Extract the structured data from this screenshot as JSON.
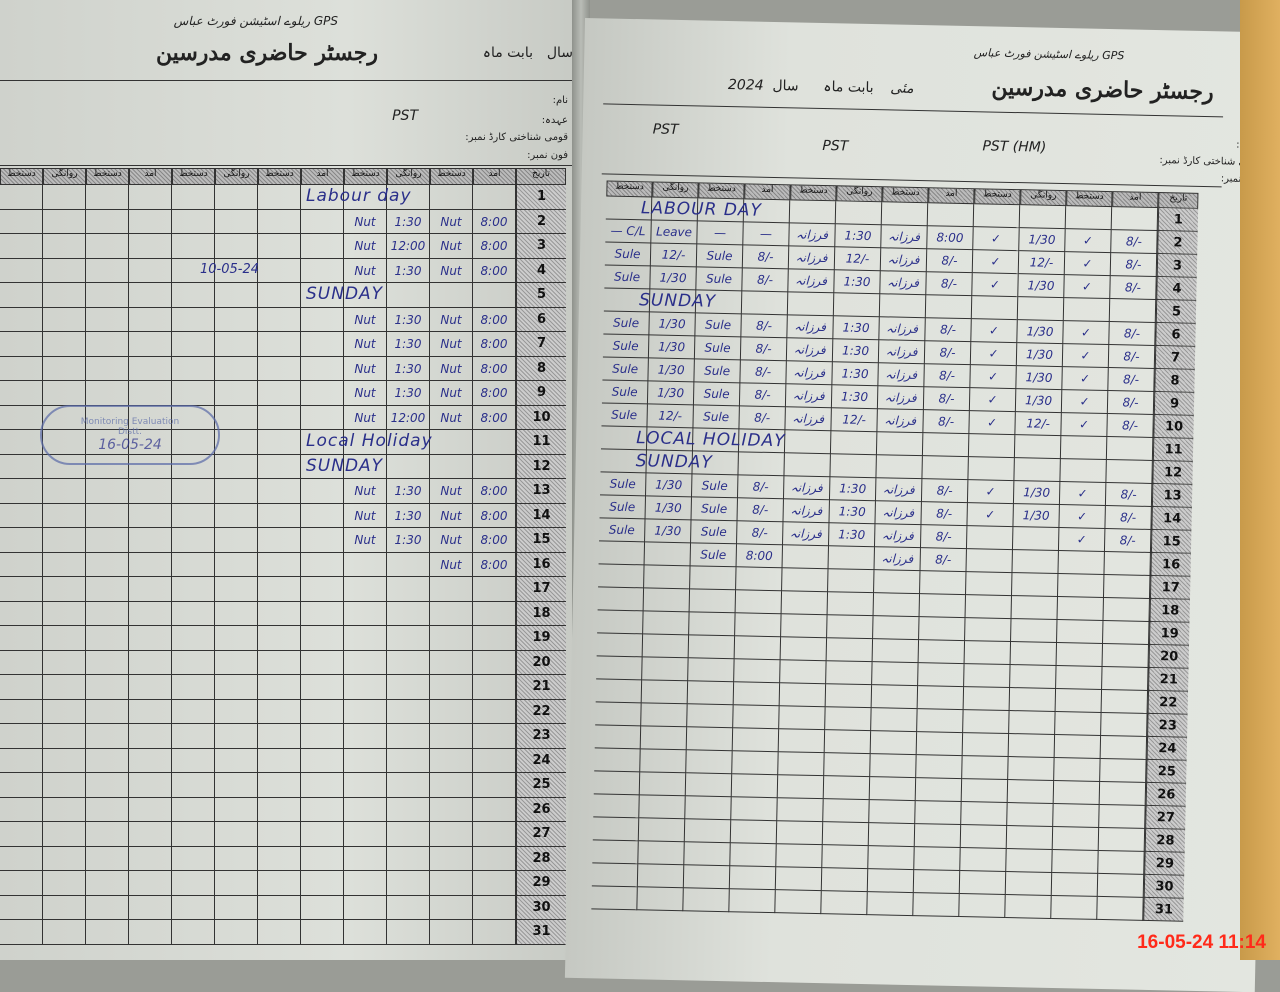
{
  "header": {
    "title": "رجسٹر حاضری مدرسین",
    "month_label": "بابت ماہ",
    "year_label": "سال",
    "school": "GPS ریلوے اسٹیشن فورٹ عباس",
    "month": "مئی",
    "year": "2024"
  },
  "fields": {
    "name": "نام:",
    "designation": "عہدہ:",
    "cnic": "قومی شناختی کارڈ نمبر:",
    "phone": "فون نمبر:"
  },
  "column_headers": [
    "دستخط",
    "روانگی",
    "دستخط",
    "آمد"
  ],
  "date_header": "تاریخ",
  "dates": [
    "1",
    "2",
    "3",
    "4",
    "5",
    "6",
    "7",
    "8",
    "9",
    "10",
    "11",
    "12",
    "13",
    "14",
    "15",
    "16",
    "17",
    "18",
    "19",
    "20",
    "21",
    "22",
    "23",
    "24",
    "25",
    "26",
    "27",
    "28",
    "29",
    "30",
    "31"
  ],
  "left_page": {
    "teacher": {
      "designation": "PST"
    },
    "rows": [
      {
        "note": "Labour day"
      },
      {
        "cells": [
          "Nut",
          "1:30",
          "Nut",
          "8:00"
        ]
      },
      {
        "cells": [
          "Nut",
          "12:00",
          "Nut",
          "8:00"
        ]
      },
      {
        "cells": [
          "Nut",
          "1:30",
          "Nut",
          "8:00"
        ]
      },
      {
        "note": "SUNDAY"
      },
      {
        "cells": [
          "Nut",
          "1:30",
          "Nut",
          "8:00"
        ]
      },
      {
        "cells": [
          "Nut",
          "1:30",
          "Nut",
          "8:00"
        ]
      },
      {
        "cells": [
          "Nut",
          "1:30",
          "Nut",
          "8:00"
        ]
      },
      {
        "cells": [
          "Nut",
          "1:30",
          "Nut",
          "8:00"
        ]
      },
      {
        "cells": [
          "Nut",
          "12:00",
          "Nut",
          "8:00"
        ]
      },
      {
        "note": "Local Holiday"
      },
      {
        "note": "SUNDAY"
      },
      {
        "cells": [
          "Nut",
          "1:30",
          "Nut",
          "8:00"
        ]
      },
      {
        "cells": [
          "Nut",
          "1:30",
          "Nut",
          "8:00"
        ]
      },
      {
        "cells": [
          "Nut",
          "1:30",
          "Nut",
          "8:00"
        ]
      },
      {
        "cells": [
          "",
          "",
          "Nut",
          "8:00"
        ]
      }
    ],
    "stamp_date": "16-05-24",
    "visit_note": "10-05-24"
  },
  "right_page": {
    "teachers": [
      {
        "designation": "PST"
      },
      {
        "designation": "PST"
      },
      {
        "designation": "PST (HM)"
      }
    ],
    "rows": [
      {
        "note": "LABOUR DAY"
      },
      {
        "cells": [
          "— C/L",
          "Leave",
          "—",
          "—",
          "فرزانہ",
          "1:30",
          "فرزانہ",
          "8:00",
          "✓",
          "1/30",
          "✓",
          "8/-"
        ]
      },
      {
        "cells": [
          "Sule",
          "12/-",
          "Sule",
          "8/-",
          "فرزانہ",
          "12/-",
          "فرزانہ",
          "8/-",
          "✓",
          "12/-",
          "✓",
          "8/-"
        ]
      },
      {
        "cells": [
          "Sule",
          "1/30",
          "Sule",
          "8/-",
          "فرزانہ",
          "1:30",
          "فرزانہ",
          "8/-",
          "✓",
          "1/30",
          "✓",
          "8/-"
        ]
      },
      {
        "note": "SUNDAY"
      },
      {
        "cells": [
          "Sule",
          "1/30",
          "Sule",
          "8/-",
          "فرزانہ",
          "1:30",
          "فرزانہ",
          "8/-",
          "✓",
          "1/30",
          "✓",
          "8/-"
        ]
      },
      {
        "cells": [
          "Sule",
          "1/30",
          "Sule",
          "8/-",
          "فرزانہ",
          "1:30",
          "فرزانہ",
          "8/-",
          "✓",
          "1/30",
          "✓",
          "8/-"
        ]
      },
      {
        "cells": [
          "Sule",
          "1/30",
          "Sule",
          "8/-",
          "فرزانہ",
          "1:30",
          "فرزانہ",
          "8/-",
          "✓",
          "1/30",
          "✓",
          "8/-"
        ]
      },
      {
        "cells": [
          "Sule",
          "1/30",
          "Sule",
          "8/-",
          "فرزانہ",
          "1:30",
          "فرزانہ",
          "8/-",
          "✓",
          "1/30",
          "✓",
          "8/-"
        ]
      },
      {
        "cells": [
          "Sule",
          "12/-",
          "Sule",
          "8/-",
          "فرزانہ",
          "12/-",
          "فرزانہ",
          "8/-",
          "✓",
          "12/-",
          "✓",
          "8/-"
        ]
      },
      {
        "note": "LOCAL HOLIDAY"
      },
      {
        "note": "SUNDAY"
      },
      {
        "cells": [
          "Sule",
          "1/30",
          "Sule",
          "8/-",
          "فرزانہ",
          "1:30",
          "فرزانہ",
          "8/-",
          "✓",
          "1/30",
          "✓",
          "8/-"
        ]
      },
      {
        "cells": [
          "Sule",
          "1/30",
          "Sule",
          "8/-",
          "فرزانہ",
          "1:30",
          "فرزانہ",
          "8/-",
          "✓",
          "1/30",
          "✓",
          "8/-"
        ]
      },
      {
        "cells": [
          "Sule",
          "1/30",
          "Sule",
          "8/-",
          "فرزانہ",
          "1:30",
          "فرزانہ",
          "8/-",
          "",
          "",
          "✓",
          "8/-"
        ]
      },
      {
        "cells": [
          "",
          "",
          "Sule",
          "8:00",
          "",
          "",
          "فرزانہ",
          "8/-",
          "",
          "",
          "",
          ""
        ]
      }
    ]
  },
  "timestamp": "16-05-24  11:14"
}
